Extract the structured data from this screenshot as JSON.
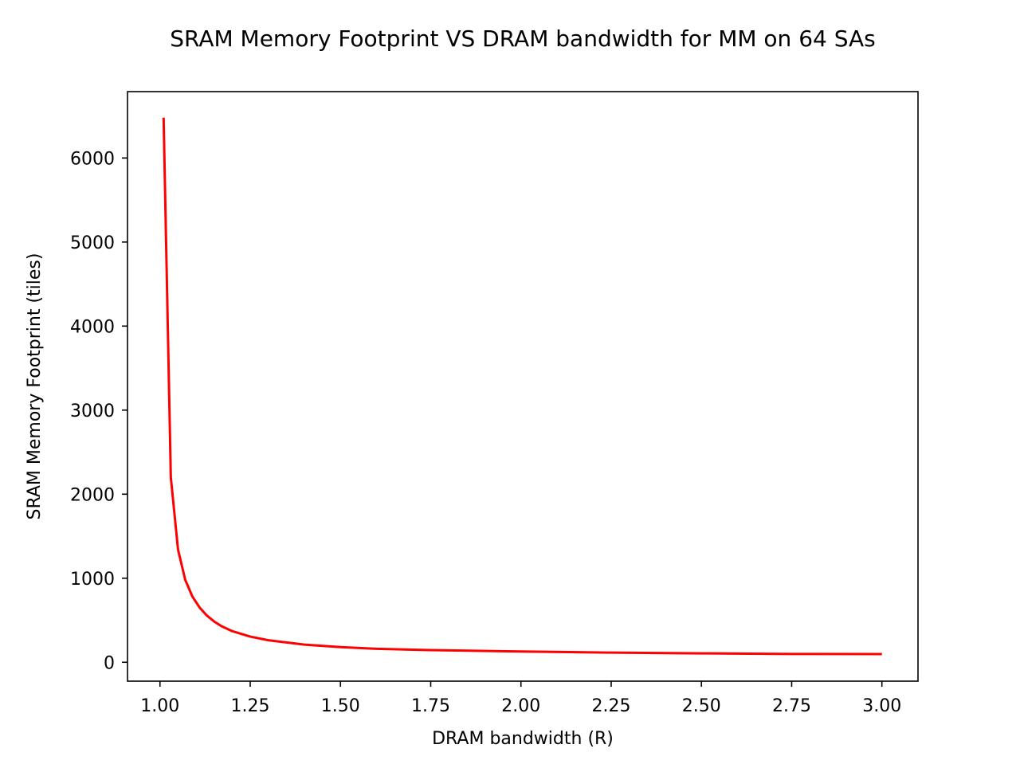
{
  "chart_data": {
    "type": "line",
    "title": "SRAM Memory Footprint VS DRAM bandwidth for MM on 64 SAs",
    "xlabel": "DRAM bandwidth (R)",
    "ylabel": "SRAM Memory Footprint (tiles)",
    "xlim": [
      0.91,
      3.1
    ],
    "ylim": [
      -225,
      6790
    ],
    "x_ticks": [
      1.0,
      1.25,
      1.5,
      1.75,
      2.0,
      2.25,
      2.5,
      2.75,
      3.0
    ],
    "x_tick_labels": [
      "1.00",
      "1.25",
      "1.50",
      "1.75",
      "2.00",
      "2.25",
      "2.50",
      "2.75",
      "3.00"
    ],
    "y_ticks": [
      0,
      1000,
      2000,
      3000,
      4000,
      5000,
      6000
    ],
    "y_tick_labels": [
      "0",
      "1000",
      "2000",
      "3000",
      "4000",
      "5000",
      "6000"
    ],
    "grid": false,
    "legend": "none",
    "series": [
      {
        "color": "#ff0000",
        "x": [
          1.01,
          1.03,
          1.05,
          1.07,
          1.09,
          1.11,
          1.13,
          1.15,
          1.17,
          1.2,
          1.25,
          1.3,
          1.4,
          1.5,
          1.6,
          1.75,
          2.0,
          2.25,
          2.5,
          2.75,
          3.0
        ],
        "y": [
          6480,
          2200,
          1340,
          980,
          780,
          650,
          555,
          485,
          430,
          370,
          305,
          262,
          210,
          180,
          160,
          145,
          128,
          115,
          106,
          99,
          97
        ]
      }
    ]
  }
}
